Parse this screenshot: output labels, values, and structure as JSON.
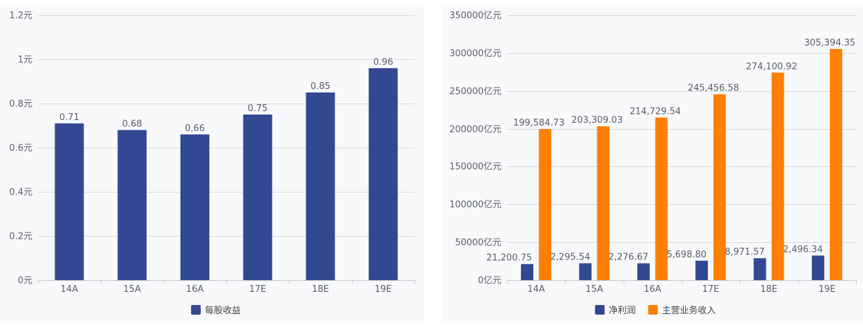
{
  "chart_data": [
    {
      "type": "bar",
      "categories": [
        "14A",
        "15A",
        "16A",
        "17E",
        "18E",
        "19E"
      ],
      "series": [
        {
          "name": "每股收益",
          "values": [
            0.71,
            0.68,
            0.66,
            0.75,
            0.85,
            0.96
          ],
          "color": "#334892"
        }
      ],
      "ylim": [
        0,
        1.2
      ],
      "yticks": [
        0,
        0.2,
        0.4,
        0.6,
        0.8,
        1,
        1.2
      ],
      "ytick_labels": [
        "0元",
        "0.2元",
        "0.4元",
        "0.6元",
        "0.8元",
        "1元",
        "1.2元"
      ],
      "grid": true,
      "legend": "bottom"
    },
    {
      "type": "bar",
      "categories": [
        "14A",
        "15A",
        "16A",
        "17E",
        "18E",
        "19E"
      ],
      "series": [
        {
          "name": "净利润",
          "values": [
            21200.75,
            22295.54,
            22276.67,
            25698.8,
            28971.57,
            32496.34
          ],
          "color": "#334892"
        },
        {
          "name": "主营业务收入",
          "values": [
            199584.73,
            203309.03,
            214729.54,
            245456.58,
            274100.92,
            305394.35
          ],
          "color": "#ff7f00"
        }
      ],
      "ylim": [
        0,
        350000
      ],
      "yticks": [
        0,
        50000,
        100000,
        150000,
        200000,
        250000,
        300000,
        350000
      ],
      "ytick_labels": [
        "0亿元",
        "50000亿元",
        "100000亿元",
        "150000亿元",
        "200000亿元",
        "250000亿元",
        "300000亿元",
        "350000亿元"
      ],
      "grid": true,
      "legend": "bottom"
    }
  ]
}
